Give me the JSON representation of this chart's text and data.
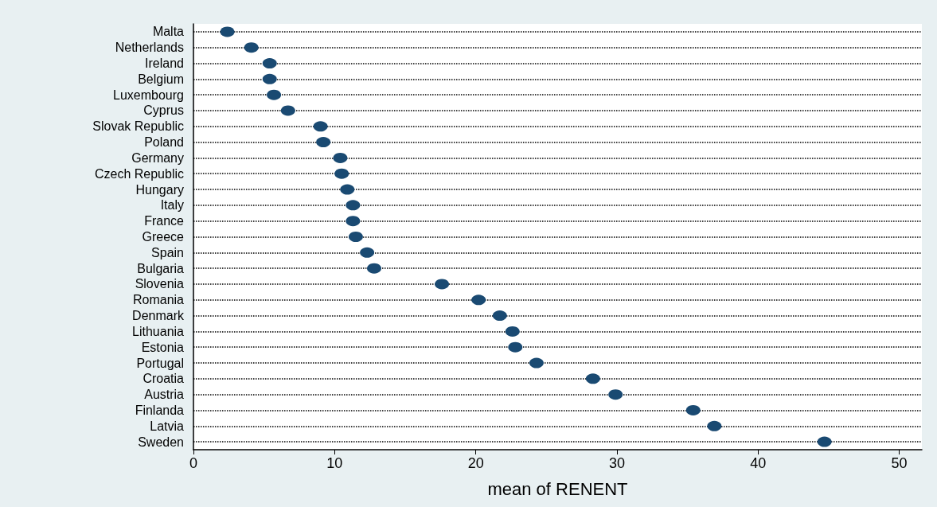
{
  "chart_data": {
    "type": "scatter",
    "orientation": "horizontal",
    "xlabel": "mean of RENENT",
    "categories": [
      "Malta",
      "Netherlands",
      "Ireland",
      "Belgium",
      "Luxembourg",
      "Cyprus",
      "Slovak Republic",
      "Poland",
      "Germany",
      "Czech Republic",
      "Hungary",
      "Italy",
      "France",
      "Greece",
      "Spain",
      "Bulgaria",
      "Slovenia",
      "Romania",
      "Denmark",
      "Lithuania",
      "Estonia",
      "Portugal",
      "Croatia",
      "Austria",
      "Finlanda",
      "Latvia",
      "Sweden"
    ],
    "values": [
      2.4,
      4.1,
      5.4,
      5.4,
      5.7,
      6.7,
      9.0,
      9.2,
      10.4,
      10.5,
      10.9,
      11.3,
      11.3,
      11.5,
      12.3,
      12.8,
      17.6,
      20.2,
      21.7,
      22.6,
      22.8,
      24.3,
      28.3,
      29.9,
      35.4,
      36.9,
      44.7
    ],
    "color": "#1a4a72",
    "marker": "circle",
    "xlim": [
      0,
      51.6
    ],
    "xticks": [
      0,
      10,
      20,
      30,
      40,
      50
    ],
    "grid": "y",
    "line_style": "dotted"
  }
}
